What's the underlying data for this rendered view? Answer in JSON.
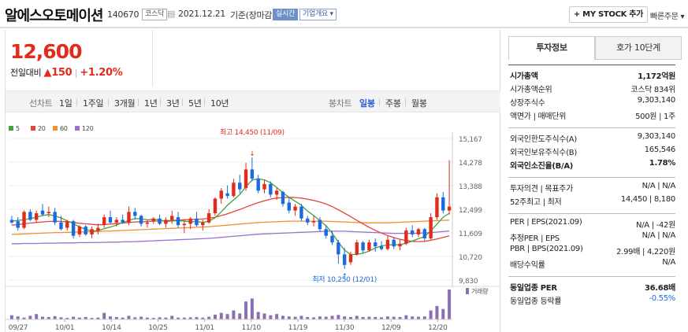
{
  "header": {
    "title": "알에스오토메이션",
    "code": "140670",
    "market": "코스닥",
    "date": "2021.12.21",
    "basis": "기준(장마감)",
    "realtime": "실시간",
    "company_info": "기업개요",
    "mystock": "+ MY STOCK 추가",
    "quick_order": "빠른주문"
  },
  "quote": {
    "price": "12,600",
    "prev_label": "전일대비",
    "change": "150",
    "change_pct": "+1.20%"
  },
  "toolbar": {
    "period_label": "선차트",
    "periods": [
      "1일",
      "1주일",
      "3개월",
      "1년",
      "3년",
      "5년",
      "10년"
    ],
    "candle_label": "봉차트",
    "candles": [
      "일봉",
      "주봉",
      "월봉"
    ],
    "active_candle": "일봉"
  },
  "legend": [
    {
      "label": "5",
      "color": "#3fa33f"
    },
    {
      "label": "20",
      "color": "#e0443a"
    },
    {
      "label": "60",
      "color": "#f0922b"
    },
    {
      "label": "120",
      "color": "#9b6fd0"
    }
  ],
  "colors": {
    "up": "#e12b1d",
    "down": "#1a6be0"
  },
  "chart_data": {
    "type": "candlestick",
    "y_ticks": [
      "15,167",
      "14,278",
      "13,388",
      "12,499",
      "11,609",
      "10,720",
      "9,830"
    ],
    "ylim": [
      9830,
      15167
    ],
    "x_ticks": [
      "09/27",
      "10/01",
      "10/14",
      "10/25",
      "11/01",
      "11/10",
      "11/19",
      "11/30",
      "12/09",
      "12/20"
    ],
    "high_label": "최고 14,450 (11/09)",
    "low_label": "최저 10,250 (12/01)",
    "volume_label": "거래량",
    "candles": [
      [
        12100,
        12250,
        11950,
        12000
      ],
      [
        12050,
        12200,
        11700,
        11800
      ],
      [
        11800,
        12450,
        11750,
        12400
      ],
      [
        12400,
        12500,
        12050,
        12100
      ],
      [
        12100,
        12450,
        12000,
        12350
      ],
      [
        12450,
        12700,
        12250,
        12300
      ],
      [
        12350,
        12600,
        12200,
        12400
      ],
      [
        12400,
        12550,
        11900,
        12000
      ],
      [
        12000,
        12250,
        11700,
        11750
      ],
      [
        11800,
        12100,
        11700,
        12050
      ],
      [
        12050,
        12100,
        11400,
        11500
      ],
      [
        11550,
        11900,
        11450,
        11850
      ],
      [
        11850,
        11900,
        11500,
        11550
      ],
      [
        11550,
        11850,
        11400,
        11750
      ],
      [
        11700,
        11950,
        11550,
        11800
      ],
      [
        11900,
        12300,
        11800,
        12200
      ],
      [
        12200,
        12450,
        11950,
        12000
      ],
      [
        12000,
        12200,
        11850,
        12100
      ],
      [
        12100,
        12300,
        11950,
        12000
      ],
      [
        12000,
        12600,
        11900,
        12400
      ],
      [
        12400,
        12550,
        12100,
        12250
      ],
      [
        12250,
        12300,
        11850,
        11950
      ],
      [
        11950,
        12100,
        11800,
        12000
      ],
      [
        12050,
        12200,
        11950,
        12150
      ],
      [
        12150,
        12300,
        11900,
        11950
      ],
      [
        11950,
        12200,
        11800,
        12100
      ],
      [
        12100,
        12450,
        11950,
        12250
      ],
      [
        12200,
        12400,
        11800,
        11900
      ],
      [
        11900,
        12100,
        11600,
        11950
      ],
      [
        11950,
        12200,
        11750,
        12150
      ],
      [
        12150,
        12400,
        11850,
        11900
      ],
      [
        11900,
        12100,
        11700,
        12000
      ],
      [
        12000,
        12500,
        11950,
        12350
      ],
      [
        12350,
        12950,
        12250,
        12900
      ],
      [
        12900,
        13300,
        12700,
        13200
      ],
      [
        13100,
        13400,
        12900,
        13000
      ],
      [
        13000,
        13650,
        12950,
        13500
      ],
      [
        13500,
        13800,
        13100,
        13250
      ],
      [
        13300,
        14250,
        13200,
        14000
      ],
      [
        14000,
        14450,
        13550,
        13650
      ],
      [
        13650,
        13800,
        13100,
        13200
      ],
      [
        13250,
        13600,
        13100,
        13450
      ],
      [
        13450,
        13550,
        12950,
        13050
      ],
      [
        13050,
        13300,
        12850,
        13200
      ],
      [
        13150,
        13200,
        12600,
        12700
      ],
      [
        12750,
        12950,
        12350,
        12450
      ],
      [
        12450,
        12700,
        12250,
        12600
      ],
      [
        12600,
        12700,
        12050,
        12150
      ],
      [
        12150,
        12250,
        11900,
        12000
      ],
      [
        12000,
        12250,
        11850,
        12050
      ],
      [
        12100,
        12200,
        11650,
        11750
      ],
      [
        11750,
        11900,
        11400,
        11500
      ],
      [
        11500,
        11700,
        11150,
        11250
      ],
      [
        11250,
        11350,
        10450,
        10800
      ],
      [
        10800,
        11050,
        10250,
        10400
      ],
      [
        10500,
        10900,
        10400,
        10800
      ],
      [
        10800,
        11350,
        10750,
        11250
      ],
      [
        11250,
        11300,
        10850,
        10950
      ],
      [
        10950,
        11350,
        10900,
        11250
      ],
      [
        11250,
        11400,
        10900,
        11100
      ],
      [
        11100,
        11300,
        10950,
        11000
      ],
      [
        11000,
        11500,
        10950,
        11350
      ],
      [
        11350,
        11450,
        11000,
        11100
      ],
      [
        11100,
        11350,
        10950,
        11200
      ],
      [
        11200,
        11800,
        11150,
        11700
      ],
      [
        11700,
        11900,
        11450,
        11550
      ],
      [
        11550,
        11800,
        11450,
        11750
      ],
      [
        11750,
        11800,
        11300,
        11400
      ],
      [
        11400,
        12350,
        11350,
        12200
      ],
      [
        12200,
        13100,
        12100,
        12950
      ],
      [
        12950,
        13150,
        12350,
        12450
      ],
      [
        12450,
        14350,
        12300,
        12600
      ]
    ],
    "volumes": [
      14,
      10,
      6,
      12,
      18,
      9,
      8,
      11,
      7,
      5,
      9,
      6,
      8,
      5,
      6,
      22,
      10,
      8,
      6,
      12,
      7,
      9,
      6,
      5,
      7,
      6,
      12,
      6,
      6,
      7,
      8,
      6,
      9,
      16,
      22,
      18,
      30,
      20,
      60,
      70,
      25,
      20,
      14,
      18,
      12,
      10,
      9,
      12,
      8,
      7,
      10,
      9,
      12,
      15,
      10,
      8,
      12,
      8,
      9,
      8,
      7,
      10,
      9,
      8,
      14,
      10,
      9,
      10,
      30,
      45,
      35,
      100
    ],
    "ma5": [
      12050,
      12080,
      12100,
      12150,
      12200,
      12260,
      12300,
      12250,
      12170,
      12060,
      11960,
      11830,
      11740,
      11680,
      11690,
      11770,
      11830,
      11900,
      12000,
      12080,
      12150,
      12140,
      12100,
      12120,
      12100,
      12030,
      12060,
      12070,
      12050,
      12030,
      12040,
      12000,
      12050,
      12180,
      12400,
      12650,
      12850,
      13050,
      13350,
      13600,
      13650,
      13600,
      13500,
      13320,
      13120,
      12950,
      12800,
      12650,
      12430,
      12260,
      12070,
      11880,
      11600,
      11260,
      10960,
      10790,
      10800,
      10840,
      10920,
      11040,
      11120,
      11150,
      11170,
      11160,
      11220,
      11300,
      11390,
      11470,
      11680,
      11940,
      12200,
      12350
    ],
    "ma20": [
      11900,
      11920,
      11950,
      11980,
      12000,
      12020,
      12040,
      12050,
      12040,
      12030,
      12000,
      11970,
      11950,
      11930,
      11910,
      11920,
      11940,
      11960,
      11980,
      12000,
      12020,
      12030,
      12040,
      12050,
      12060,
      12070,
      12080,
      12090,
      12100,
      12110,
      12120,
      12130,
      12160,
      12200,
      12260,
      12330,
      12410,
      12490,
      12580,
      12670,
      12750,
      12820,
      12880,
      12920,
      12940,
      12950,
      12940,
      12920,
      12880,
      12830,
      12770,
      12700,
      12600,
      12480,
      12350,
      12220,
      12080,
      11950,
      11820,
      11700,
      11600,
      11510,
      11430,
      11370,
      11320,
      11290,
      11280,
      11290,
      11330,
      11380,
      11440,
      11500
    ],
    "ma60": [
      11550,
      11560,
      11570,
      11580,
      11590,
      11600,
      11610,
      11620,
      11620,
      11630,
      11640,
      11640,
      11650,
      11650,
      11660,
      11670,
      11680,
      11690,
      11700,
      11710,
      11720,
      11730,
      11740,
      11750,
      11760,
      11770,
      11780,
      11790,
      11800,
      11810,
      11820,
      11830,
      11840,
      11860,
      11880,
      11900,
      11920,
      11940,
      11960,
      11980,
      12000,
      12010,
      12020,
      12030,
      12040,
      12050,
      12050,
      12050,
      12050,
      12050,
      12050,
      12050,
      12040,
      12030,
      12020,
      12010,
      12000,
      11990,
      11990,
      11990,
      11990,
      11990,
      12000,
      12010,
      12020,
      12030,
      12040,
      12050,
      12060,
      12070,
      12080,
      12090
    ],
    "ma120": [
      11200,
      11200,
      11210,
      11210,
      11210,
      11220,
      11220,
      11220,
      11230,
      11230,
      11230,
      11240,
      11240,
      11240,
      11250,
      11250,
      11260,
      11260,
      11270,
      11270,
      11280,
      11290,
      11300,
      11310,
      11320,
      11330,
      11340,
      11350,
      11360,
      11370,
      11380,
      11390,
      11400,
      11420,
      11440,
      11460,
      11480,
      11500,
      11520,
      11540,
      11560,
      11570,
      11580,
      11590,
      11600,
      11610,
      11620,
      11630,
      11640,
      11650,
      11660,
      11670,
      11670,
      11670,
      11670,
      11660,
      11650,
      11640,
      11630,
      11620,
      11610,
      11600,
      11590,
      11590,
      11590,
      11590,
      11600,
      11610,
      11620,
      11640,
      11660,
      11680
    ]
  },
  "tabs": {
    "invest": "투자정보",
    "hoga": "호가 10단계"
  },
  "info": [
    {
      "k": "시가총액",
      "v": "1,172억원",
      "bold": true
    },
    {
      "k": "시가총액순위",
      "v": "코스닥 834위"
    },
    {
      "k": "상장주식수",
      "v": "9,303,140"
    },
    {
      "k": "액면가 | 매매단위",
      "v": "500원 | 1주"
    },
    {
      "k": "외국인한도주식수(A)",
      "v": "9,303,140",
      "gap": true
    },
    {
      "k": "외국인보유주식수(B)",
      "v": "165,546"
    },
    {
      "k": "외국인소진율(B/A)",
      "v": "1.78%",
      "bold": true
    },
    {
      "k": "투자의견 | 목표주가",
      "v": "N/A | N/A",
      "gap": true
    },
    {
      "k": "52주최고 | 최저",
      "v": "14,450 | 8,180"
    },
    {
      "k": "PER | EPS(2021.09)",
      "v": "N/A | -42원",
      "gap": true
    },
    {
      "k": "추정PER | EPS",
      "v": "N/A | N/A"
    },
    {
      "k": "PBR | BPS(2021.09)",
      "v": "2.99배 | 4,220원"
    },
    {
      "k": "배당수익률",
      "v": "N/A"
    },
    {
      "k": "동일업종 PER",
      "v": "36.68배",
      "gap": true,
      "bold": true
    },
    {
      "k": "동일업종 등락률",
      "v": "-0.55%",
      "blue": true
    }
  ]
}
